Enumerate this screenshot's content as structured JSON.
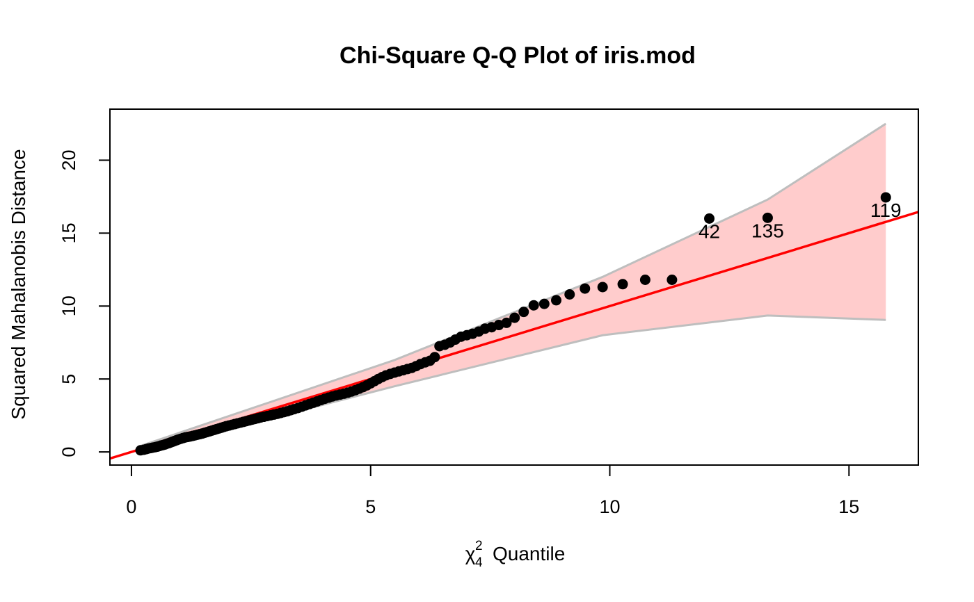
{
  "chart_data": {
    "type": "scatter",
    "title": "Chi-Square Q-Q Plot of iris.mod",
    "xlabel": {
      "symbol": "χ",
      "superscript": "2",
      "subscript": "4",
      "text": "Quantile"
    },
    "ylabel": "Squared Mahalanobis Distance",
    "xlim": [
      -0.45,
      16.45
    ],
    "ylim": [
      -0.9,
      23.5
    ],
    "x_ticks": [
      0,
      5,
      10,
      15
    ],
    "x_tick_labels": [
      "0",
      "5",
      "10",
      "15"
    ],
    "y_ticks": [
      0,
      5,
      10,
      15,
      20
    ],
    "y_tick_labels": [
      "0",
      "5",
      "10",
      "15",
      "20"
    ],
    "grid": false,
    "reference_line": {
      "intercept": 0,
      "slope": 1.0,
      "color": "#ff0000"
    },
    "confidence_band": {
      "fill": "#ffcccc",
      "edge_color": "#bebebe",
      "x": [
        0.18,
        5.5,
        9.85,
        13.3,
        15.77
      ],
      "upper": [
        0.4,
        6.3,
        12.0,
        17.3,
        22.5
      ],
      "lower": [
        0.0,
        4.5,
        8.0,
        9.35,
        9.05
      ]
    },
    "point_color": "#000000",
    "points": [
      [
        0.19,
        0.11
      ],
      [
        0.26,
        0.15
      ],
      [
        0.31,
        0.19
      ],
      [
        0.36,
        0.24
      ],
      [
        0.41,
        0.27
      ],
      [
        0.45,
        0.3
      ],
      [
        0.5,
        0.33
      ],
      [
        0.54,
        0.36
      ],
      [
        0.58,
        0.4
      ],
      [
        0.62,
        0.44
      ],
      [
        0.66,
        0.47
      ],
      [
        0.7,
        0.51
      ],
      [
        0.74,
        0.56
      ],
      [
        0.78,
        0.6
      ],
      [
        0.82,
        0.65
      ],
      [
        0.86,
        0.7
      ],
      [
        0.9,
        0.75
      ],
      [
        0.94,
        0.8
      ],
      [
        0.98,
        0.85
      ],
      [
        1.03,
        0.9
      ],
      [
        1.08,
        0.95
      ],
      [
        1.13,
        1.0
      ],
      [
        1.18,
        1.03
      ],
      [
        1.23,
        1.06
      ],
      [
        1.28,
        1.1
      ],
      [
        1.33,
        1.14
      ],
      [
        1.38,
        1.18
      ],
      [
        1.43,
        1.22
      ],
      [
        1.48,
        1.26
      ],
      [
        1.53,
        1.31
      ],
      [
        1.58,
        1.36
      ],
      [
        1.63,
        1.41
      ],
      [
        1.68,
        1.46
      ],
      [
        1.73,
        1.51
      ],
      [
        1.78,
        1.56
      ],
      [
        1.83,
        1.61
      ],
      [
        1.88,
        1.66
      ],
      [
        1.93,
        1.71
      ],
      [
        1.98,
        1.76
      ],
      [
        2.04,
        1.81
      ],
      [
        2.1,
        1.86
      ],
      [
        2.16,
        1.91
      ],
      [
        2.22,
        1.96
      ],
      [
        2.28,
        2.01
      ],
      [
        2.34,
        2.06
      ],
      [
        2.4,
        2.11
      ],
      [
        2.46,
        2.16
      ],
      [
        2.52,
        2.21
      ],
      [
        2.58,
        2.26
      ],
      [
        2.64,
        2.31
      ],
      [
        2.7,
        2.36
      ],
      [
        2.77,
        2.41
      ],
      [
        2.84,
        2.46
      ],
      [
        2.91,
        2.51
      ],
      [
        2.98,
        2.56
      ],
      [
        3.05,
        2.61
      ],
      [
        3.12,
        2.67
      ],
      [
        3.19,
        2.73
      ],
      [
        3.26,
        2.79
      ],
      [
        3.33,
        2.86
      ],
      [
        3.4,
        2.93
      ],
      [
        3.48,
        3.01
      ],
      [
        3.56,
        3.1
      ],
      [
        3.64,
        3.19
      ],
      [
        3.72,
        3.28
      ],
      [
        3.8,
        3.37
      ],
      [
        3.88,
        3.46
      ],
      [
        3.96,
        3.55
      ],
      [
        4.04,
        3.64
      ],
      [
        4.12,
        3.72
      ],
      [
        4.2,
        3.8
      ],
      [
        4.28,
        3.87
      ],
      [
        4.36,
        3.93
      ],
      [
        4.44,
        3.99
      ],
      [
        4.52,
        4.06
      ],
      [
        4.6,
        4.14
      ],
      [
        4.68,
        4.23
      ],
      [
        4.76,
        4.33
      ],
      [
        4.84,
        4.44
      ],
      [
        4.92,
        4.56
      ],
      [
        5.0,
        4.7
      ],
      [
        5.08,
        4.85
      ],
      [
        5.16,
        5.0
      ],
      [
        5.24,
        5.13
      ],
      [
        5.32,
        5.25
      ],
      [
        5.41,
        5.35
      ],
      [
        5.5,
        5.44
      ],
      [
        5.59,
        5.52
      ],
      [
        5.68,
        5.6
      ],
      [
        5.77,
        5.68
      ],
      [
        5.86,
        5.76
      ],
      [
        5.95,
        5.88
      ],
      [
        6.04,
        6.02
      ],
      [
        6.14,
        6.14
      ],
      [
        6.24,
        6.25
      ],
      [
        6.34,
        6.5
      ],
      [
        6.44,
        7.25
      ],
      [
        6.55,
        7.35
      ],
      [
        6.66,
        7.5
      ],
      [
        6.77,
        7.7
      ],
      [
        6.89,
        7.9
      ],
      [
        7.01,
        8.0
      ],
      [
        7.13,
        8.1
      ],
      [
        7.26,
        8.25
      ],
      [
        7.39,
        8.45
      ],
      [
        7.53,
        8.55
      ],
      [
        7.68,
        8.7
      ],
      [
        7.84,
        8.85
      ],
      [
        8.01,
        9.2
      ],
      [
        8.2,
        9.6
      ],
      [
        8.41,
        10.05
      ],
      [
        8.63,
        10.15
      ],
      [
        8.88,
        10.4
      ],
      [
        9.16,
        10.8
      ],
      [
        9.48,
        11.2
      ],
      [
        9.85,
        11.3
      ],
      [
        10.27,
        11.5
      ],
      [
        10.74,
        11.8
      ],
      [
        11.3,
        11.8
      ],
      [
        12.08,
        16.0
      ],
      [
        13.3,
        16.05
      ],
      [
        15.77,
        17.45
      ]
    ],
    "point_labels": [
      {
        "text": "42",
        "x": 12.08,
        "y": 16.0
      },
      {
        "text": "135",
        "x": 13.3,
        "y": 16.05
      },
      {
        "text": "119",
        "x": 15.77,
        "y": 17.45
      }
    ]
  }
}
